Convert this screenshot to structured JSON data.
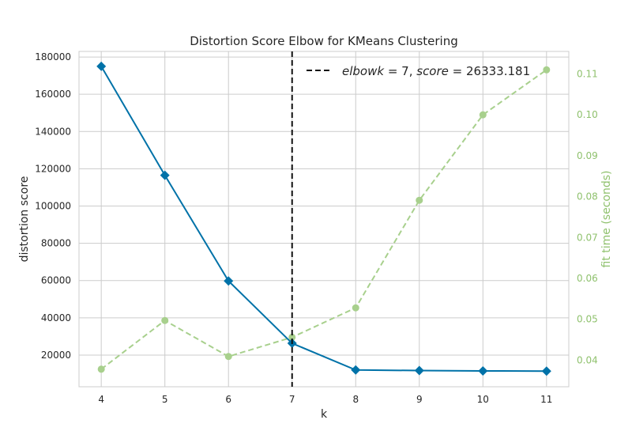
{
  "chart_data": {
    "type": "line",
    "title": "Distortion Score Elbow for KMeans Clustering",
    "xlabel": "k",
    "ylabel": "distortion score",
    "y2label": "fit time (seconds)",
    "x": [
      4,
      5,
      6,
      7,
      8,
      9,
      10,
      11
    ],
    "xlim": [
      3.65,
      11.35
    ],
    "ylim": [
      3000,
      183000
    ],
    "y2lim": [
      0.0335,
      0.1155
    ],
    "yticks": [
      20000,
      40000,
      60000,
      80000,
      100000,
      120000,
      140000,
      160000,
      180000
    ],
    "yticks_labels": [
      "20000",
      "40000",
      "60000",
      "80000",
      "100000",
      "120000",
      "140000",
      "160000",
      "180000"
    ],
    "y2ticks": [
      0.04,
      0.05,
      0.06,
      0.07,
      0.08,
      0.09,
      0.1,
      0.11
    ],
    "y2ticks_labels": [
      "0.04",
      "0.05",
      "0.06",
      "0.07",
      "0.08",
      "0.09",
      "0.10",
      "0.11"
    ],
    "grid": true,
    "legend_position": "top-right",
    "series": [
      {
        "axis": "left",
        "color": "#0072a8",
        "marker": "diamond",
        "values": [
          175000,
          116500,
          59800,
          26333.181,
          12000,
          11700,
          11500,
          11400
        ]
      },
      {
        "axis": "right",
        "color": "#a8d08d",
        "marker": "circle",
        "dashed": true,
        "values": [
          0.0378,
          0.0497,
          0.0409,
          0.0456,
          0.0528,
          0.0791,
          0.1,
          0.111
        ]
      }
    ],
    "elbow": {
      "x": 7,
      "color": "#111111",
      "label": "elbowk = 7, score = 26333.181",
      "label_parts": {
        "prefix": "elbowk",
        "eq1": " = 7, ",
        "mid": "score",
        "eq2": " = 26333.181"
      }
    }
  }
}
